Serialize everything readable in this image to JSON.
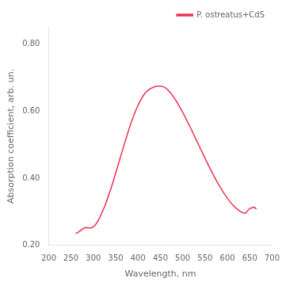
{
  "chart_data": {
    "type": "line",
    "xlabel": "Wavelength, nm",
    "ylabel": "Absorption coefficient, arb. un.",
    "x": [
      260,
      265,
      270,
      275,
      280,
      285,
      290,
      295,
      300,
      305,
      310,
      315,
      320,
      325,
      330,
      335,
      340,
      345,
      350,
      355,
      360,
      365,
      370,
      375,
      380,
      385,
      390,
      395,
      400,
      405,
      410,
      415,
      420,
      425,
      430,
      435,
      440,
      445,
      450,
      455,
      460,
      465,
      470,
      475,
      480,
      490,
      500,
      510,
      520,
      530,
      540,
      550,
      560,
      570,
      580,
      590,
      600,
      610,
      620,
      630,
      640,
      650,
      660,
      665
    ],
    "series": [
      {
        "name": "P. ostreatus+CdS",
        "color": "#f03050",
        "values": [
          0.236,
          0.238,
          0.243,
          0.248,
          0.252,
          0.253,
          0.252,
          0.252,
          0.255,
          0.262,
          0.272,
          0.285,
          0.3,
          0.315,
          0.333,
          0.352,
          0.372,
          0.393,
          0.415,
          0.438,
          0.46,
          0.482,
          0.505,
          0.526,
          0.547,
          0.567,
          0.585,
          0.602,
          0.617,
          0.63,
          0.642,
          0.652,
          0.659,
          0.664,
          0.668,
          0.671,
          0.673,
          0.674,
          0.674,
          0.673,
          0.67,
          0.665,
          0.658,
          0.65,
          0.641,
          0.62,
          0.596,
          0.57,
          0.543,
          0.515,
          0.487,
          0.459,
          0.432,
          0.406,
          0.382,
          0.36,
          0.34,
          0.323,
          0.31,
          0.3,
          0.295,
          0.31,
          0.314,
          0.308
        ]
      }
    ],
    "xlim": [
      200,
      700
    ],
    "ylim": [
      0.2,
      0.85
    ],
    "xticks": [
      200,
      250,
      300,
      350,
      400,
      450,
      500,
      550,
      600,
      650,
      700
    ],
    "yticks": [
      {
        "value": 0.2,
        "label": "0.20"
      },
      {
        "value": 0.4,
        "label": "0.40"
      },
      {
        "value": 0.6,
        "label": "0.60"
      },
      {
        "value": 0.8,
        "label": "0.80"
      }
    ],
    "grid": false,
    "legend": "upper right"
  }
}
